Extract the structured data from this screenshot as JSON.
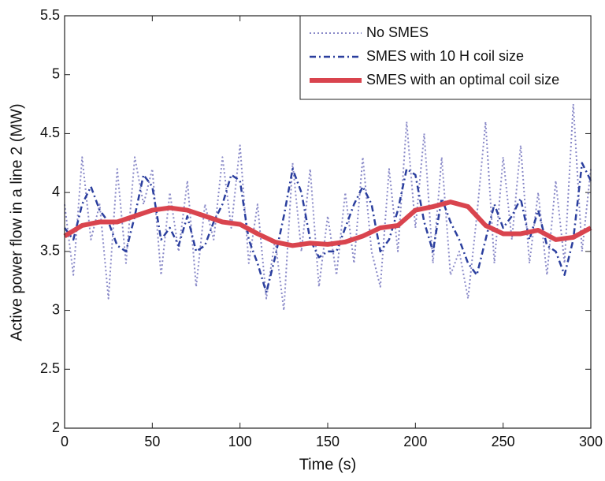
{
  "chart_data": {
    "type": "line",
    "xlabel": "Time (s)",
    "ylabel": "Active power flow in a line 2 (MW)",
    "xlim": [
      0,
      300
    ],
    "xticks": [
      0,
      50,
      100,
      150,
      200,
      250,
      300
    ],
    "ylim": [
      2,
      5.5
    ],
    "yticks": [
      2,
      2.5,
      3,
      3.5,
      4,
      4.5,
      5,
      5.5
    ],
    "legend": "upper right",
    "series": [
      {
        "name": "No SMES",
        "color": "#8a8ac8",
        "style": "dotted",
        "x": [
          0,
          5,
          10,
          15,
          20,
          25,
          30,
          35,
          40,
          45,
          50,
          55,
          60,
          65,
          70,
          75,
          80,
          85,
          90,
          95,
          100,
          105,
          110,
          115,
          120,
          125,
          130,
          135,
          140,
          145,
          150,
          155,
          160,
          165,
          170,
          175,
          180,
          185,
          190,
          195,
          200,
          205,
          210,
          215,
          220,
          225,
          230,
          235,
          240,
          245,
          250,
          255,
          260,
          265,
          270,
          275,
          280,
          285,
          290,
          295,
          300
        ],
        "values": [
          3.9,
          3.3,
          4.3,
          3.6,
          3.9,
          3.1,
          4.2,
          3.4,
          4.3,
          3.9,
          4.2,
          3.3,
          4.0,
          3.5,
          4.1,
          3.2,
          3.9,
          3.6,
          4.3,
          3.7,
          4.4,
          3.4,
          3.9,
          3.1,
          3.6,
          3.0,
          4.25,
          3.5,
          4.2,
          3.2,
          3.8,
          3.3,
          4.0,
          3.4,
          4.3,
          3.5,
          3.2,
          4.2,
          3.5,
          4.6,
          3.7,
          4.5,
          3.4,
          4.3,
          3.3,
          3.5,
          3.1,
          3.8,
          4.6,
          3.4,
          4.3,
          3.6,
          4.4,
          3.4,
          4.0,
          3.3,
          4.1,
          3.4,
          4.75,
          3.5,
          4.2
        ]
      },
      {
        "name": "SMES with 10 H coil size",
        "color": "#2b3f9e",
        "style": "dashdot",
        "x": [
          0,
          5,
          10,
          15,
          20,
          25,
          30,
          35,
          40,
          45,
          50,
          55,
          60,
          65,
          70,
          75,
          80,
          85,
          90,
          95,
          100,
          105,
          110,
          115,
          120,
          125,
          130,
          135,
          140,
          145,
          150,
          155,
          160,
          165,
          170,
          175,
          180,
          185,
          190,
          195,
          200,
          205,
          210,
          215,
          220,
          225,
          230,
          235,
          240,
          245,
          250,
          255,
          260,
          265,
          270,
          275,
          280,
          285,
          290,
          295,
          300
        ],
        "values": [
          3.7,
          3.6,
          3.9,
          4.05,
          3.85,
          3.75,
          3.55,
          3.5,
          3.8,
          4.15,
          4.05,
          3.6,
          3.7,
          3.55,
          3.8,
          3.5,
          3.55,
          3.75,
          3.9,
          4.15,
          4.1,
          3.6,
          3.4,
          3.15,
          3.45,
          3.8,
          4.2,
          4.0,
          3.6,
          3.45,
          3.5,
          3.5,
          3.7,
          3.9,
          4.05,
          3.9,
          3.5,
          3.6,
          3.85,
          4.2,
          4.15,
          3.75,
          3.5,
          3.95,
          3.75,
          3.6,
          3.4,
          3.3,
          3.6,
          3.9,
          3.7,
          3.8,
          3.95,
          3.6,
          3.85,
          3.55,
          3.5,
          3.3,
          3.6,
          4.25,
          4.1
        ]
      },
      {
        "name": "SMES with an optimal coil size",
        "color": "#d9444e",
        "style": "solid",
        "x": [
          0,
          10,
          20,
          30,
          40,
          50,
          60,
          70,
          80,
          90,
          100,
          110,
          120,
          130,
          140,
          150,
          160,
          170,
          180,
          190,
          200,
          210,
          220,
          230,
          240,
          250,
          260,
          270,
          280,
          290,
          300
        ],
        "values": [
          3.63,
          3.72,
          3.75,
          3.75,
          3.8,
          3.85,
          3.87,
          3.85,
          3.8,
          3.75,
          3.73,
          3.65,
          3.58,
          3.55,
          3.57,
          3.56,
          3.58,
          3.63,
          3.7,
          3.72,
          3.85,
          3.88,
          3.92,
          3.88,
          3.72,
          3.65,
          3.65,
          3.68,
          3.6,
          3.62,
          3.7
        ]
      }
    ]
  }
}
